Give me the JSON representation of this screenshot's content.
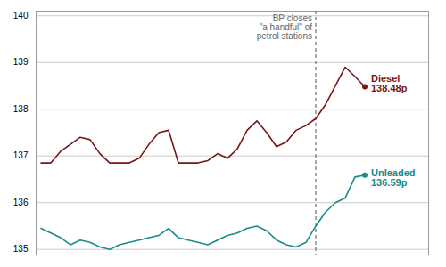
{
  "chart_data": {
    "type": "line",
    "x": [
      0,
      1,
      2,
      3,
      4,
      5,
      6,
      7,
      8,
      9,
      10,
      11,
      12,
      13,
      14,
      15,
      16,
      17,
      18,
      19,
      20,
      21,
      22,
      23,
      24,
      25,
      26,
      27,
      28,
      29,
      30,
      31,
      32,
      33
    ],
    "xlim": [
      -0.5,
      39.5
    ],
    "ylim": [
      134.88,
      140.1
    ],
    "yticks": [
      135,
      136,
      137,
      138,
      139,
      140
    ],
    "grid": true,
    "tick_labels": "y",
    "series": [
      {
        "name": "Diesel\n138.48p",
        "color": "#7b1515",
        "values": [
          136.85,
          136.85,
          137.1,
          137.25,
          137.4,
          137.35,
          137.05,
          136.85,
          136.85,
          136.85,
          136.95,
          137.25,
          137.5,
          137.55,
          136.85,
          136.85,
          136.85,
          136.9,
          137.05,
          136.95,
          137.15,
          137.55,
          137.75,
          137.5,
          137.2,
          137.3,
          137.55,
          137.65,
          137.8,
          138.1,
          138.5,
          138.9,
          138.7,
          138.48
        ]
      },
      {
        "name": "Unleaded\n136.59p",
        "color": "#1a8a8a",
        "values": [
          135.45,
          135.35,
          135.25,
          135.1,
          135.2,
          135.15,
          135.05,
          135.0,
          135.1,
          135.15,
          135.2,
          135.25,
          135.3,
          135.45,
          135.25,
          135.2,
          135.15,
          135.1,
          135.2,
          135.3,
          135.35,
          135.45,
          135.5,
          135.4,
          135.2,
          135.1,
          135.05,
          135.15,
          135.5,
          135.8,
          136.0,
          136.1,
          136.55,
          136.59
        ]
      }
    ],
    "annotations": [
      {
        "text": "BP closes\n\"a handful\" of\npetrol stations",
        "x": 28
      }
    ]
  }
}
